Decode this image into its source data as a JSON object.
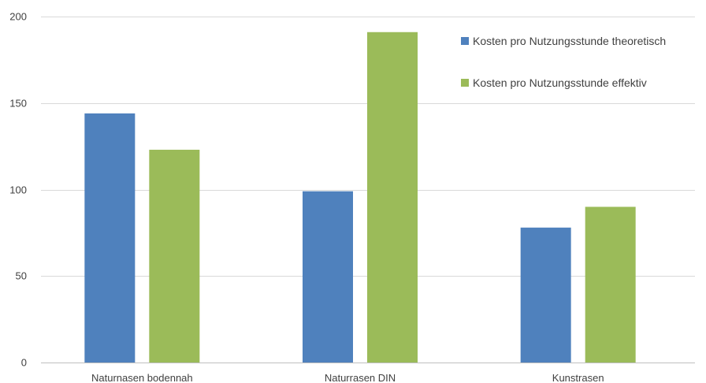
{
  "chart_data": {
    "type": "bar",
    "title": "",
    "xlabel": "",
    "ylabel": "",
    "categories": [
      "Naturnasen bodennah",
      "Naturrasen DIN",
      "Kunstrasen"
    ],
    "series": [
      {
        "name": "Kosten pro Nutzungsstunde theoretisch",
        "color": "#4f81bd",
        "values": [
          144,
          99,
          78
        ]
      },
      {
        "name": "Kosten pro Nutzungsstunde effektiv",
        "color": "#9bbb59",
        "values": [
          123,
          191,
          90
        ]
      }
    ],
    "ylim": [
      0,
      200
    ],
    "yticks": [
      0,
      50,
      100,
      150,
      200
    ],
    "grid": true,
    "legend": "top-right"
  }
}
